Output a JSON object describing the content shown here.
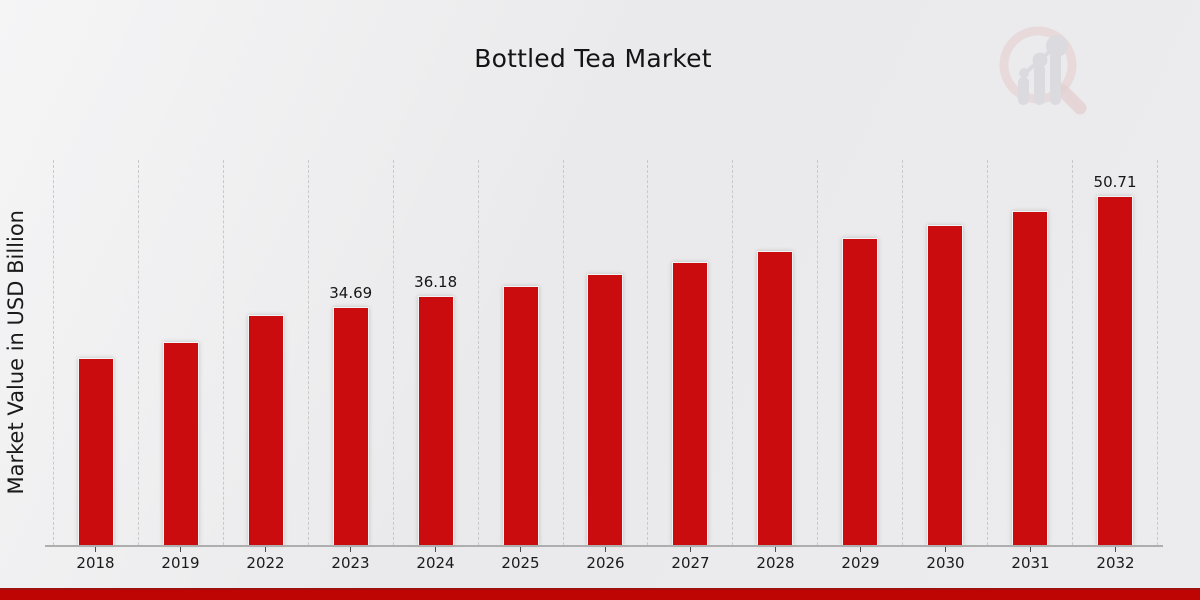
{
  "page": {
    "title": "Bottled Tea Market",
    "ylabel": "Market Value in USD Billion"
  },
  "chart_data": {
    "type": "bar",
    "title": "Bottled Tea Market",
    "xlabel": "",
    "ylabel": "Market Value in USD Billion",
    "categories": [
      "2018",
      "2019",
      "2022",
      "2023",
      "2024",
      "2025",
      "2026",
      "2027",
      "2028",
      "2029",
      "2030",
      "2031",
      "2032"
    ],
    "values": [
      27.2,
      29.5,
      33.4,
      34.69,
      36.18,
      37.7,
      39.4,
      41.1,
      42.8,
      44.7,
      46.6,
      48.6,
      50.71
    ],
    "data_labels": [
      "",
      "",
      "",
      "34.69",
      "36.18",
      "",
      "",
      "",
      "",
      "",
      "",
      "",
      "50.71"
    ],
    "ylim": [
      0,
      56
    ],
    "grid": "vertical-dashed",
    "legend": "none",
    "bar_color": "#cb0c0e"
  },
  "colors": {
    "bar": "#cb0c0e",
    "banner": "#bf0404",
    "banner_edge": "#9d1111",
    "background": "#ebebec",
    "gridline": "#c9c9c9",
    "axis": "#aeaeae",
    "text": "#1a1a1a",
    "logo_ring": "#e2bcbc",
    "logo_bars": "#c9c9cf"
  },
  "icons": {
    "watermark": "market-research-magnifier-chart-logo"
  }
}
